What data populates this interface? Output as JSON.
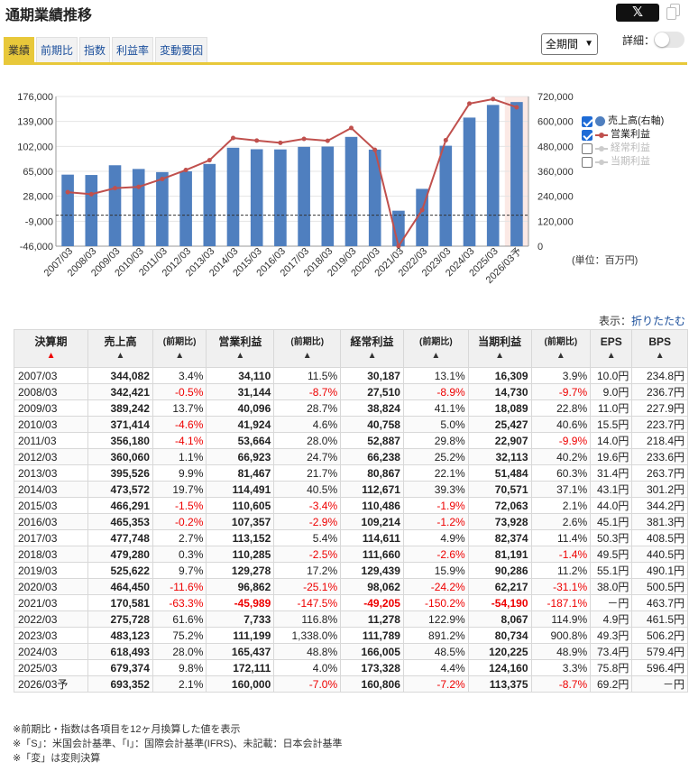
{
  "header": {
    "title": "通期業績推移",
    "x_label": "𝕏"
  },
  "tabs": [
    "業績",
    "前期比",
    "指数",
    "利益率",
    "変動要因"
  ],
  "active_tab": 0,
  "period_select": {
    "value": "全期間"
  },
  "detail_label": "詳細：",
  "legend": [
    {
      "label": "売上高(右軸)",
      "checked": true,
      "marker": "dot",
      "color": "#4f7fbf"
    },
    {
      "label": "営業利益",
      "checked": true,
      "marker": "line",
      "color": "#c0504d"
    },
    {
      "label": "経常利益",
      "checked": false,
      "marker": "line",
      "color": "#cccccc"
    },
    {
      "label": "当期利益",
      "checked": false,
      "marker": "line",
      "color": "#cccccc"
    }
  ],
  "unit_label": "(単位：百万円)",
  "chart_data": {
    "type": "bar",
    "categories": [
      "2007/03",
      "2008/03",
      "2009/03",
      "2010/03",
      "2011/03",
      "2012/03",
      "2013/03",
      "2014/03",
      "2015/03",
      "2016/03",
      "2017/03",
      "2018/03",
      "2019/03",
      "2020/03",
      "2021/03",
      "2022/03",
      "2023/03",
      "2024/03",
      "2025/03",
      "2026/03予"
    ],
    "series": [
      {
        "name": "売上高(右軸)",
        "type": "bar",
        "axis": "right",
        "color": "#4f7fbf",
        "values": [
          344082,
          342421,
          389242,
          371414,
          356180,
          360060,
          395526,
          473572,
          466291,
          465353,
          477748,
          479280,
          525622,
          464450,
          170581,
          275728,
          483123,
          618493,
          679374,
          693352
        ]
      },
      {
        "name": "営業利益",
        "type": "line",
        "axis": "left",
        "color": "#c0504d",
        "values": [
          34110,
          31144,
          40096,
          41924,
          53664,
          66923,
          81467,
          114491,
          110605,
          107357,
          113152,
          110285,
          129278,
          96862,
          -45989,
          7733,
          111199,
          165437,
          172111,
          160000
        ]
      }
    ],
    "left_axis": {
      "ticks": [
        "176,000",
        "139,000",
        "102,000",
        "65,000",
        "28,000",
        "-9,000",
        "-46,000"
      ],
      "min": -46000,
      "max": 176000
    },
    "right_axis": {
      "ticks": [
        "720,000",
        "600,000",
        "480,000",
        "360,000",
        "240,000",
        "120,000",
        "0"
      ],
      "min": 0,
      "max": 720000
    },
    "zero_line": true
  },
  "display": {
    "label": "表示：",
    "link": "折りたたむ"
  },
  "table": {
    "headers": [
      "決算期",
      "売上高",
      "(前期比)",
      "営業利益",
      "(前期比)",
      "経常利益",
      "(前期比)",
      "当期利益",
      "(前期比)",
      "EPS",
      "BPS"
    ],
    "sort_arrow": "▲",
    "rows": [
      [
        "2007/03",
        "344,082",
        "3.4%",
        "34,110",
        "11.5%",
        "30,187",
        "13.1%",
        "16,309",
        "3.9%",
        "10.0円",
        "234.8円"
      ],
      [
        "2008/03",
        "342,421",
        "-0.5%",
        "31,144",
        "-8.7%",
        "27,510",
        "-8.9%",
        "14,730",
        "-9.7%",
        "9.0円",
        "236.7円"
      ],
      [
        "2009/03",
        "389,242",
        "13.7%",
        "40,096",
        "28.7%",
        "38,824",
        "41.1%",
        "18,089",
        "22.8%",
        "11.0円",
        "227.9円"
      ],
      [
        "2010/03",
        "371,414",
        "-4.6%",
        "41,924",
        "4.6%",
        "40,758",
        "5.0%",
        "25,427",
        "40.6%",
        "15.5円",
        "223.7円"
      ],
      [
        "2011/03",
        "356,180",
        "-4.1%",
        "53,664",
        "28.0%",
        "52,887",
        "29.8%",
        "22,907",
        "-9.9%",
        "14.0円",
        "218.4円"
      ],
      [
        "2012/03",
        "360,060",
        "1.1%",
        "66,923",
        "24.7%",
        "66,238",
        "25.2%",
        "32,113",
        "40.2%",
        "19.6円",
        "233.6円"
      ],
      [
        "2013/03",
        "395,526",
        "9.9%",
        "81,467",
        "21.7%",
        "80,867",
        "22.1%",
        "51,484",
        "60.3%",
        "31.4円",
        "263.7円"
      ],
      [
        "2014/03",
        "473,572",
        "19.7%",
        "114,491",
        "40.5%",
        "112,671",
        "39.3%",
        "70,571",
        "37.1%",
        "43.1円",
        "301.2円"
      ],
      [
        "2015/03",
        "466,291",
        "-1.5%",
        "110,605",
        "-3.4%",
        "110,486",
        "-1.9%",
        "72,063",
        "2.1%",
        "44.0円",
        "344.2円"
      ],
      [
        "2016/03",
        "465,353",
        "-0.2%",
        "107,357",
        "-2.9%",
        "109,214",
        "-1.2%",
        "73,928",
        "2.6%",
        "45.1円",
        "381.3円"
      ],
      [
        "2017/03",
        "477,748",
        "2.7%",
        "113,152",
        "5.4%",
        "114,611",
        "4.9%",
        "82,374",
        "11.4%",
        "50.3円",
        "408.5円"
      ],
      [
        "2018/03",
        "479,280",
        "0.3%",
        "110,285",
        "-2.5%",
        "111,660",
        "-2.6%",
        "81,191",
        "-1.4%",
        "49.5円",
        "440.5円"
      ],
      [
        "2019/03",
        "525,622",
        "9.7%",
        "129,278",
        "17.2%",
        "129,439",
        "15.9%",
        "90,286",
        "11.2%",
        "55.1円",
        "490.1円"
      ],
      [
        "2020/03",
        "464,450",
        "-11.6%",
        "96,862",
        "-25.1%",
        "98,062",
        "-24.2%",
        "62,217",
        "-31.1%",
        "38.0円",
        "500.5円"
      ],
      [
        "2021/03",
        "170,581",
        "-63.3%",
        "-45,989",
        "-147.5%",
        "-49,205",
        "-150.2%",
        "-54,190",
        "-187.1%",
        "－円",
        "463.7円"
      ],
      [
        "2022/03",
        "275,728",
        "61.6%",
        "7,733",
        "116.8%",
        "11,278",
        "122.9%",
        "8,067",
        "114.9%",
        "4.9円",
        "461.5円"
      ],
      [
        "2023/03",
        "483,123",
        "75.2%",
        "111,199",
        "1,338.0%",
        "111,789",
        "891.2%",
        "80,734",
        "900.8%",
        "49.3円",
        "506.2円"
      ],
      [
        "2024/03",
        "618,493",
        "28.0%",
        "165,437",
        "48.8%",
        "166,005",
        "48.5%",
        "120,225",
        "48.9%",
        "73.4円",
        "579.4円"
      ],
      [
        "2025/03",
        "679,374",
        "9.8%",
        "172,111",
        "4.0%",
        "173,328",
        "4.4%",
        "124,160",
        "3.3%",
        "75.8円",
        "596.4円"
      ],
      [
        "2026/03予",
        "693,352",
        "2.1%",
        "160,000",
        "-7.0%",
        "160,806",
        "-7.2%",
        "113,375",
        "-8.7%",
        "69.2円",
        "－円"
      ]
    ]
  },
  "notes": [
    "※前期比・指数は各項目を12ヶ月換算した値を表示",
    "※「S」：米国会計基準、「I」：国際会計基準(IFRS)、未記載：日本会計基準",
    "※「変」は変則決算"
  ]
}
